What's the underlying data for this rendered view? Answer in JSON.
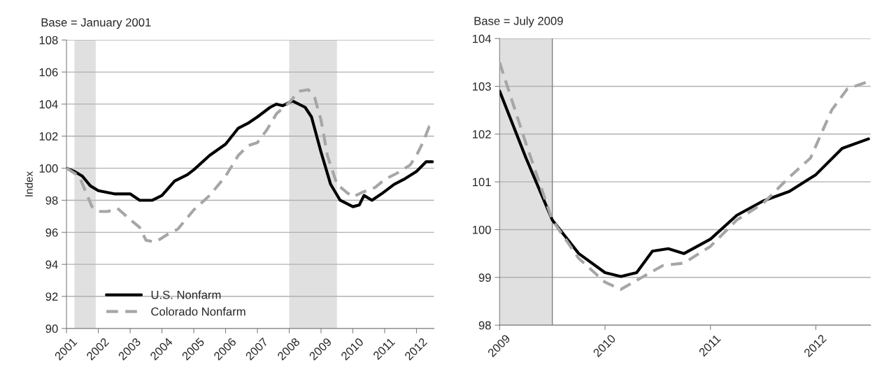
{
  "chart_data": [
    {
      "type": "line",
      "title": "Base = January 2001",
      "ylabel": "Index",
      "xlim": [
        2001,
        2012.55
      ],
      "xticks": [
        2001,
        2002,
        2003,
        2004,
        2005,
        2006,
        2007,
        2008,
        2009,
        2010,
        2011,
        2012
      ],
      "ylim": [
        90,
        108
      ],
      "yticks": [
        90,
        92,
        94,
        96,
        98,
        100,
        102,
        104,
        106,
        108
      ],
      "grid": "y",
      "legend": "bottom left",
      "marker": "none",
      "bands": [
        {
          "axis": "x",
          "from": 2001.25,
          "to": 2001.92,
          "color": "#e0e0e0"
        },
        {
          "axis": "x",
          "from": 2008.0,
          "to": 2009.5,
          "color": "#e0e0e0"
        }
      ],
      "series": [
        {
          "name": "U.S. Nonfarm",
          "color": "#000000",
          "line_style": "solid",
          "x": [
            2001.0,
            2001.25,
            2001.5,
            2001.75,
            2002.0,
            2002.5,
            2003.0,
            2003.3,
            2003.7,
            2004.0,
            2004.4,
            2004.8,
            2005.0,
            2005.5,
            2006.0,
            2006.4,
            2006.7,
            2007.0,
            2007.4,
            2007.6,
            2007.8,
            2008.0,
            2008.1,
            2008.5,
            2008.7,
            2009.0,
            2009.3,
            2009.6,
            2010.0,
            2010.2,
            2010.35,
            2010.6,
            2010.9,
            2011.3,
            2011.6,
            2012.0,
            2012.3,
            2012.5
          ],
          "values": [
            100,
            99.8,
            99.5,
            98.9,
            98.6,
            98.4,
            98.4,
            98.0,
            98.0,
            98.3,
            99.2,
            99.6,
            99.9,
            100.8,
            101.5,
            102.5,
            102.8,
            103.2,
            103.8,
            104.0,
            103.9,
            104.1,
            104.2,
            103.8,
            103.2,
            101.0,
            99.0,
            98.0,
            97.6,
            97.7,
            98.3,
            98.0,
            98.4,
            99.0,
            99.3,
            99.8,
            100.4,
            100.4
          ]
        },
        {
          "name": "Colorado Nonfarm",
          "color": "#a6a6a6",
          "line_style": "dashed",
          "x": [
            2001.0,
            2001.4,
            2001.8,
            2002.0,
            2002.3,
            2002.6,
            2003.0,
            2003.3,
            2003.5,
            2003.8,
            2004.2,
            2004.5,
            2005.0,
            2005.5,
            2006.0,
            2006.4,
            2006.7,
            2007.0,
            2007.3,
            2007.6,
            2008.0,
            2008.3,
            2008.6,
            2008.8,
            2009.0,
            2009.2,
            2009.5,
            2009.8,
            2010.0,
            2010.3,
            2010.7,
            2011.0,
            2011.4,
            2011.8,
            2012.0,
            2012.2,
            2012.4,
            2012.5
          ],
          "values": [
            100,
            99.5,
            97.6,
            97.3,
            97.3,
            97.5,
            96.8,
            96.3,
            95.5,
            95.4,
            95.9,
            96.2,
            97.4,
            98.3,
            99.5,
            100.8,
            101.4,
            101.6,
            102.4,
            103.4,
            104.1,
            104.8,
            104.9,
            104.4,
            103.0,
            100.8,
            99.0,
            98.5,
            98.2,
            98.5,
            98.8,
            99.3,
            99.7,
            100.2,
            100.8,
            101.6,
            102.6,
            102.6
          ]
        }
      ]
    },
    {
      "type": "line",
      "title": "Base = July 2009",
      "xlim": [
        2009,
        2012.52
      ],
      "xticks": [
        2009,
        2010,
        2011,
        2012
      ],
      "ylim": [
        98,
        104
      ],
      "yticks": [
        98,
        99,
        100,
        101,
        102,
        103,
        104
      ],
      "grid": "y",
      "marker": "none",
      "bands": [
        {
          "axis": "x",
          "from": 2009.0,
          "to": 2009.5,
          "color": "#e0e0e0"
        }
      ],
      "ref_lines": [
        {
          "axis": "x",
          "value": 2009.5,
          "color": "#808080"
        }
      ],
      "series": [
        {
          "color": "#000000",
          "line_style": "solid",
          "x": [
            2009.0,
            2009.25,
            2009.5,
            2009.75,
            2010.0,
            2010.15,
            2010.3,
            2010.45,
            2010.6,
            2010.75,
            2011.0,
            2011.25,
            2011.5,
            2011.75,
            2012.0,
            2012.25,
            2012.5
          ],
          "values": [
            102.9,
            101.5,
            100.2,
            99.5,
            99.1,
            99.02,
            99.1,
            99.55,
            99.6,
            99.5,
            99.8,
            100.3,
            100.6,
            100.8,
            101.15,
            101.7,
            101.9
          ]
        },
        {
          "color": "#a6a6a6",
          "line_style": "dashed",
          "x": [
            2009.0,
            2009.25,
            2009.5,
            2009.75,
            2010.0,
            2010.15,
            2010.35,
            2010.55,
            2010.75,
            2011.0,
            2011.25,
            2011.5,
            2011.75,
            2011.95,
            2012.15,
            2012.3,
            2012.5
          ],
          "values": [
            103.5,
            101.8,
            100.2,
            99.4,
            98.9,
            98.75,
            99.0,
            99.25,
            99.3,
            99.65,
            100.2,
            100.55,
            101.1,
            101.5,
            102.5,
            102.95,
            103.1
          ]
        }
      ]
    }
  ]
}
